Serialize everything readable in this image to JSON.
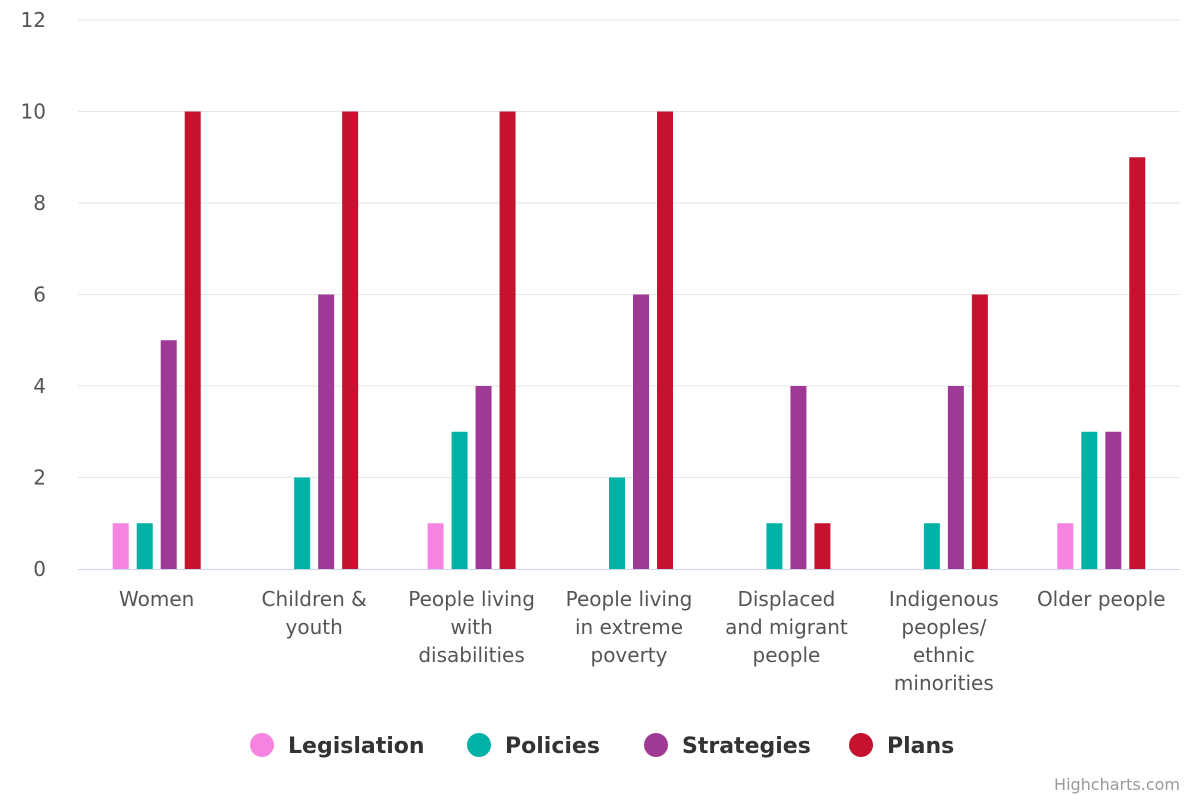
{
  "chart_data": {
    "type": "bar",
    "title": "",
    "xlabel": "",
    "ylabel": "",
    "ylim": [
      0,
      12
    ],
    "yticks": [
      0,
      2,
      4,
      6,
      8,
      10,
      12
    ],
    "grid": true,
    "legend_position": "bottom-center",
    "categories": [
      "Women",
      "Children & youth",
      "People living with disabilities",
      "People living in extreme poverty",
      "Displaced and migrant people",
      "Indigenous peoples/ ethnic minorities",
      "Older people"
    ],
    "category_label_lines": [
      [
        "Women"
      ],
      [
        "Children &",
        "youth"
      ],
      [
        "People living",
        "with",
        "disabilities"
      ],
      [
        "People living",
        "in extreme",
        "poverty"
      ],
      [
        "Displaced",
        "and migrant",
        "people"
      ],
      [
        "Indigenous",
        "peoples/",
        "ethnic",
        "minorities"
      ],
      [
        "Older people"
      ]
    ],
    "series": [
      {
        "name": "Legislation",
        "color": "#f783e0",
        "values": [
          1,
          0,
          1,
          0,
          0,
          0,
          1
        ]
      },
      {
        "name": "Policies",
        "color": "#00b1a6",
        "values": [
          1,
          2,
          3,
          2,
          1,
          1,
          3
        ]
      },
      {
        "name": "Strategies",
        "color": "#9e3a95",
        "values": [
          5,
          6,
          4,
          6,
          4,
          4,
          3
        ]
      },
      {
        "name": "Plans",
        "color": "#c4122f",
        "values": [
          10,
          10,
          10,
          10,
          1,
          6,
          9
        ]
      }
    ]
  },
  "credit": "Highcharts.com"
}
